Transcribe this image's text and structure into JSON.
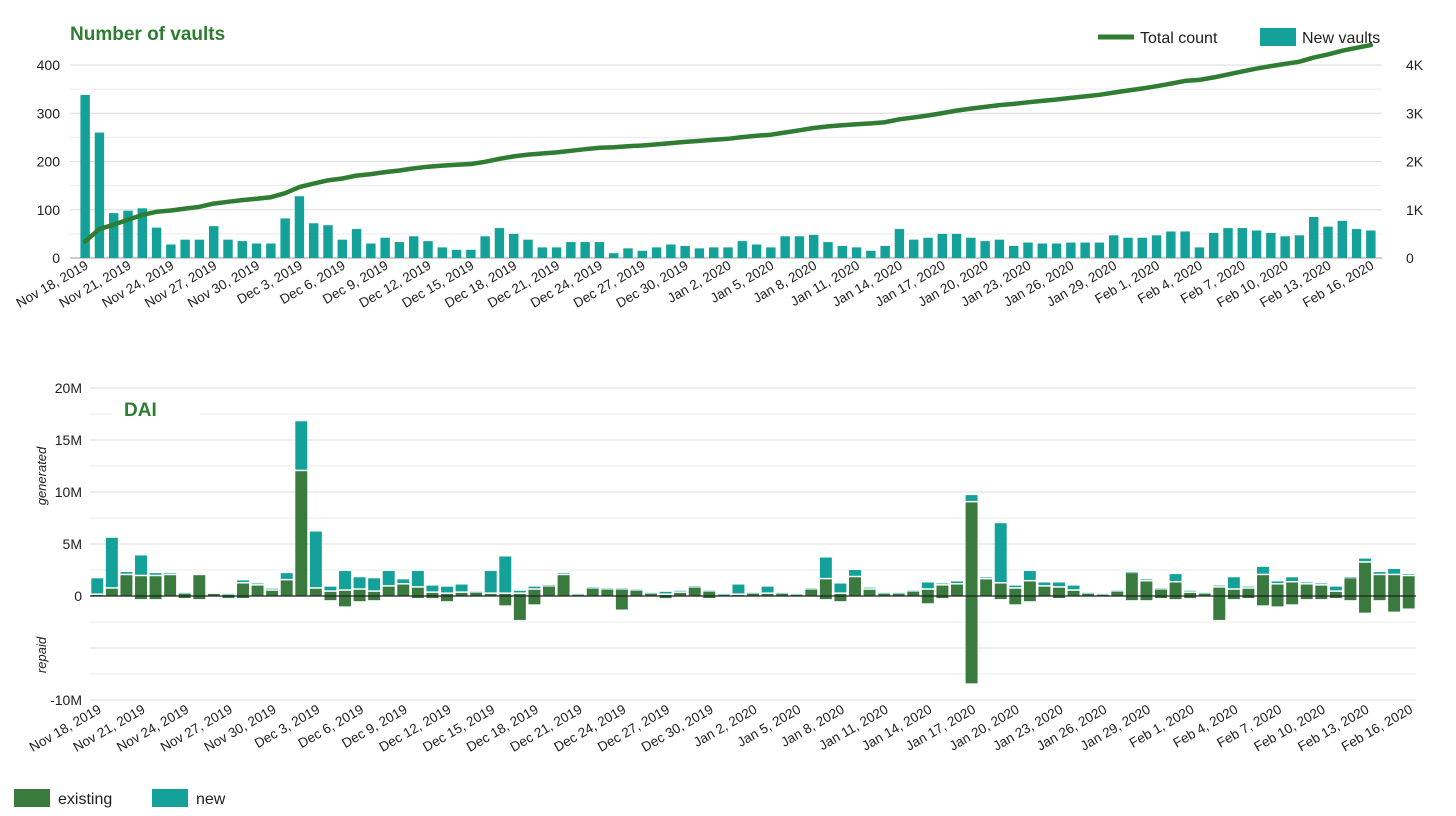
{
  "chart_data": [
    {
      "type": "bar",
      "title": "Number of vaults",
      "legend": [
        "Total count",
        "New vaults"
      ],
      "legend_position": "top-right",
      "x_tick_labels": [
        "Nov 18, 2019",
        "Nov 21, 2019",
        "Nov 24, 2019",
        "Nov 27, 2019",
        "Nov 30, 2019",
        "Dec 3, 2019",
        "Dec 6, 2019",
        "Dec 9, 2019",
        "Dec 12, 2019",
        "Dec 15, 2019",
        "Dec 18, 2019",
        "Dec 21, 2019",
        "Dec 24, 2019",
        "Dec 27, 2019",
        "Dec 30, 2019",
        "Jan 2, 2020",
        "Jan 5, 2020",
        "Jan 8, 2020",
        "Jan 11, 2020",
        "Jan 14, 2020",
        "Jan 17, 2020",
        "Jan 20, 2020",
        "Jan 23, 2020",
        "Jan 26, 2020",
        "Jan 29, 2020",
        "Feb 1, 2020",
        "Feb 4, 2020",
        "Feb 7, 2020",
        "Feb 10, 2020",
        "Feb 13, 2020",
        "Feb 16, 2020"
      ],
      "ylim": [
        0,
        400
      ],
      "y_ticks": [
        "0",
        "100",
        "200",
        "300",
        "400"
      ],
      "y2lim": [
        0,
        4000
      ],
      "y2_ticks": [
        "0",
        "1K",
        "2K",
        "3K",
        "4K"
      ],
      "grid": true,
      "series": [
        {
          "name": "New vaults",
          "kind": "bar",
          "axis": "left",
          "color": "#13a19a",
          "values": [
            338,
            260,
            93,
            98,
            103,
            63,
            28,
            38,
            38,
            66,
            38,
            35,
            30,
            30,
            82,
            128,
            72,
            68,
            38,
            60,
            30,
            42,
            33,
            45,
            35,
            22,
            17,
            17,
            45,
            62,
            50,
            38,
            22,
            22,
            33,
            33,
            33,
            10,
            20,
            15,
            22,
            28,
            25,
            20,
            22,
            22,
            35,
            28,
            22,
            45,
            45,
            48,
            33,
            25,
            22,
            15,
            25,
            60,
            38,
            42,
            50,
            50,
            42,
            35,
            38,
            25,
            32,
            30,
            30,
            32,
            32,
            32,
            47,
            42,
            42,
            47,
            55,
            55,
            22,
            52,
            62,
            62,
            57,
            52,
            45,
            47,
            85,
            65,
            77,
            60,
            57
          ]
        },
        {
          "name": "Total count",
          "kind": "line",
          "axis": "right",
          "color": "#2f7d32",
          "values": [
            340,
            600,
            693,
            791,
            894,
            957,
            985,
            1023,
            1061,
            1127,
            1165,
            1200,
            1230,
            1260,
            1342,
            1470,
            1542,
            1610,
            1648,
            1708,
            1738,
            1780,
            1813,
            1858,
            1893,
            1915,
            1932,
            1949,
            1994,
            2056,
            2106,
            2144,
            2166,
            2188,
            2221,
            2254,
            2287,
            2297,
            2317,
            2332,
            2354,
            2382,
            2407,
            2427,
            2449,
            2471,
            2506,
            2534,
            2556,
            2601,
            2646,
            2694,
            2727,
            2752,
            2774,
            2789,
            2814,
            2874,
            2912,
            2954,
            3004,
            3054,
            3096,
            3131,
            3169,
            3194,
            3226,
            3256,
            3286,
            3318,
            3350,
            3382,
            3429,
            3471,
            3513,
            3560,
            3615,
            3670,
            3692,
            3744,
            3806,
            3868,
            3925,
            3977,
            4022,
            4069,
            4154,
            4219,
            4296,
            4356,
            4413
          ]
        }
      ]
    },
    {
      "type": "bar",
      "title": "DAI",
      "y_axis_names": [
        "generated",
        "repaid"
      ],
      "legend": [
        "existing",
        "new"
      ],
      "legend_position": "bottom-left",
      "x_tick_labels": [
        "Nov 18, 2019",
        "Nov 21, 2019",
        "Nov 24, 2019",
        "Nov 27, 2019",
        "Nov 30, 2019",
        "Dec 3, 2019",
        "Dec 6, 2019",
        "Dec 9, 2019",
        "Dec 12, 2019",
        "Dec 15, 2019",
        "Dec 18, 2019",
        "Dec 21, 2019",
        "Dec 24, 2019",
        "Dec 27, 2019",
        "Dec 30, 2019",
        "Jan 2, 2020",
        "Jan 5, 2020",
        "Jan 8, 2020",
        "Jan 11, 2020",
        "Jan 14, 2020",
        "Jan 17, 2020",
        "Jan 20, 2020",
        "Jan 23, 2020",
        "Jan 26, 2020",
        "Jan 29, 2020",
        "Feb 1, 2020",
        "Feb 4, 2020",
        "Feb 7, 2020",
        "Feb 10, 2020",
        "Feb 13, 2020",
        "Feb 16, 2020"
      ],
      "ylim": [
        -10000000,
        20000000
      ],
      "y_ticks": [
        "-10M",
        "0",
        "5M",
        "10M",
        "15M",
        "20M"
      ],
      "grid": true,
      "series": [
        {
          "name": "existing",
          "part": "generated",
          "color": "#3a7a3e",
          "values": [
            0.1,
            0.7,
            2.0,
            1.9,
            1.9,
            2.0,
            0.2,
            2.0,
            0.2,
            0.1,
            1.2,
            1.0,
            0.5,
            1.5,
            12.0,
            0.7,
            0.4,
            0.5,
            0.6,
            0.4,
            0.9,
            1.1,
            0.8,
            0.3,
            0.2,
            0.3,
            0.3,
            0.2,
            0.2,
            0.2,
            0.6,
            0.9,
            2.0,
            0.1,
            0.7,
            0.6,
            0.6,
            0.5,
            0.2,
            0.1,
            0.3,
            0.8,
            0.4,
            0.1,
            0.1,
            0.2,
            0.2,
            0.2,
            0.1,
            0.6,
            1.6,
            0.2,
            1.8,
            0.6,
            0.2,
            0.2,
            0.4,
            0.6,
            1.0,
            1.1,
            9.0,
            1.6,
            1.2,
            0.7,
            1.4,
            0.9,
            0.8,
            0.5,
            0.2,
            0.1,
            0.4,
            2.2,
            1.4,
            0.6,
            1.3,
            0.3,
            0.2,
            0.8,
            0.6,
            0.7,
            2.0,
            1.1,
            1.3,
            1.1,
            1.0,
            0.4,
            1.7,
            3.2,
            2.0,
            2.0,
            1.9
          ]
        },
        {
          "name": "new",
          "part": "generated",
          "color": "#13a19a",
          "values": [
            1.6,
            4.9,
            0.3,
            2.0,
            0.3,
            0.2,
            0.1,
            0.0,
            0.0,
            0.1,
            0.3,
            0.2,
            0.2,
            0.7,
            4.8,
            5.5,
            0.5,
            1.9,
            1.2,
            1.3,
            1.5,
            0.5,
            1.6,
            0.7,
            0.7,
            0.8,
            0.1,
            2.2,
            3.6,
            0.3,
            0.3,
            0.1,
            0.2,
            0.1,
            0.1,
            0.1,
            0.1,
            0.1,
            0.1,
            0.3,
            0.2,
            0.1,
            0.1,
            0.1,
            1.0,
            0.1,
            0.7,
            0.1,
            0.1,
            0.1,
            2.1,
            1.0,
            0.7,
            0.2,
            0.1,
            0.1,
            0.1,
            0.7,
            0.2,
            0.3,
            0.7,
            0.2,
            5.8,
            0.3,
            1.0,
            0.4,
            0.5,
            0.5,
            0.1,
            0.1,
            0.1,
            0.1,
            0.2,
            0.1,
            0.8,
            0.2,
            0.1,
            0.2,
            1.2,
            0.2,
            0.8,
            0.3,
            0.5,
            0.2,
            0.2,
            0.5,
            0.1,
            0.4,
            0.3,
            0.6,
            0.2
          ]
        },
        {
          "name": "existing",
          "part": "repaid",
          "color": "#3a7a3e",
          "values": [
            0,
            0,
            0,
            -0.3,
            -0.3,
            0,
            -0.2,
            -0.3,
            0,
            -0.2,
            -0.2,
            0,
            0,
            0,
            0,
            0,
            -0.4,
            -1.0,
            -0.5,
            -0.4,
            0,
            0,
            -0.2,
            -0.2,
            -0.5,
            0,
            0,
            0,
            -0.9,
            -2.3,
            -0.8,
            0,
            0,
            0,
            0,
            0,
            -1.3,
            0,
            0,
            -0.2,
            0,
            0,
            -0.2,
            0,
            0,
            0,
            0,
            0,
            0,
            0,
            -0.3,
            -0.5,
            0,
            0,
            0,
            0,
            0,
            -0.7,
            -0.2,
            0,
            -8.4,
            0,
            -0.3,
            -0.8,
            -0.5,
            0,
            -0.2,
            0,
            0,
            0,
            0,
            -0.4,
            -0.4,
            -0.2,
            -0.3,
            -0.2,
            0,
            -2.3,
            -0.3,
            -0.2,
            -0.9,
            -1.0,
            -0.8,
            -0.3,
            -0.3,
            -0.2,
            -0.4,
            -1.6,
            -0.4,
            -1.5,
            -1.2
          ]
        }
      ]
    }
  ]
}
